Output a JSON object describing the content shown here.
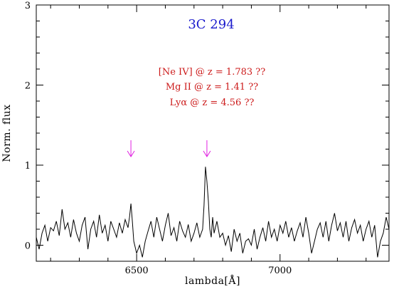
{
  "chart_data": {
    "type": "line",
    "title": "3C 294",
    "xlabel": "lambda[Å]",
    "ylabel": "Norm. flux",
    "xlim": [
      6150,
      7380
    ],
    "ylim": [
      -0.2,
      3.0
    ],
    "x_ticks": [
      {
        "value": 6500,
        "label": "6500"
      },
      {
        "value": 7000,
        "label": "7000"
      }
    ],
    "y_ticks": [
      {
        "value": 0,
        "label": "0"
      },
      {
        "value": 1,
        "label": "1"
      },
      {
        "value": 2,
        "label": "2"
      },
      {
        "value": 3,
        "label": "3"
      }
    ],
    "annotations": [
      "[Ne IV] @ z = 1.783 ??",
      "Mg II @ z = 1.41 ??",
      "Lyα @ z = 4.56 ??"
    ],
    "arrow_positions": [
      6480,
      6745
    ],
    "colors": {
      "title": "#1a1acd",
      "annotations": "#cc1a1a",
      "arrows": "#e020e0",
      "line": "#000000"
    },
    "series": [
      {
        "x": [
          6150,
          6160,
          6170,
          6180,
          6190,
          6200,
          6210,
          6220,
          6230,
          6240,
          6250,
          6260,
          6270,
          6280,
          6290,
          6300,
          6310,
          6320,
          6330,
          6340,
          6350,
          6360,
          6370,
          6380,
          6390,
          6400,
          6410,
          6420,
          6430,
          6440,
          6450,
          6460,
          6470,
          6475,
          6480,
          6485,
          6490,
          6500,
          6510,
          6520,
          6530,
          6540,
          6550,
          6560,
          6570,
          6580,
          6590,
          6600,
          6610,
          6620,
          6630,
          6640,
          6650,
          6660,
          6670,
          6680,
          6690,
          6700,
          6710,
          6720,
          6730,
          6735,
          6740,
          6745,
          6750,
          6755,
          6760,
          6765,
          6770,
          6780,
          6790,
          6800,
          6810,
          6820,
          6830,
          6840,
          6850,
          6860,
          6870,
          6880,
          6890,
          6900,
          6910,
          6920,
          6930,
          6940,
          6950,
          6960,
          6970,
          6980,
          6990,
          7000,
          7010,
          7020,
          7030,
          7040,
          7050,
          7060,
          7070,
          7080,
          7090,
          7100,
          7110,
          7120,
          7130,
          7140,
          7150,
          7160,
          7170,
          7180,
          7190,
          7200,
          7210,
          7220,
          7230,
          7240,
          7250,
          7260,
          7270,
          7280,
          7290,
          7300,
          7310,
          7320,
          7330,
          7340,
          7350,
          7360,
          7370,
          7380
        ],
        "y": [
          0.1,
          -0.05,
          0.15,
          0.25,
          0.05,
          0.22,
          0.18,
          0.3,
          0.12,
          0.45,
          0.2,
          0.28,
          0.1,
          0.32,
          0.15,
          0.05,
          0.25,
          0.35,
          -0.05,
          0.2,
          0.3,
          0.1,
          0.38,
          0.15,
          0.25,
          0.05,
          0.3,
          0.2,
          0.1,
          0.28,
          0.15,
          0.32,
          0.22,
          0.35,
          0.52,
          0.3,
          0.05,
          -0.1,
          0.0,
          -0.15,
          0.05,
          0.18,
          0.3,
          0.1,
          0.35,
          0.2,
          0.05,
          0.25,
          0.4,
          0.12,
          0.22,
          0.05,
          0.3,
          0.18,
          0.1,
          0.26,
          0.05,
          0.15,
          0.28,
          0.1,
          0.2,
          0.5,
          0.98,
          0.8,
          0.55,
          0.2,
          0.1,
          0.35,
          0.15,
          0.3,
          0.1,
          0.15,
          0.0,
          0.12,
          -0.08,
          0.2,
          0.05,
          0.15,
          -0.1,
          0.05,
          0.08,
          0.0,
          0.2,
          -0.05,
          0.1,
          0.22,
          0.05,
          0.3,
          0.1,
          0.2,
          0.05,
          0.25,
          0.15,
          0.3,
          0.1,
          0.22,
          0.05,
          0.18,
          0.28,
          0.1,
          0.35,
          0.15,
          -0.1,
          0.05,
          0.2,
          0.28,
          0.1,
          0.3,
          0.05,
          0.25,
          0.4,
          0.18,
          0.28,
          0.1,
          0.3,
          0.05,
          0.22,
          0.32,
          0.15,
          0.25,
          0.05,
          0.2,
          0.3,
          0.1,
          0.25,
          -0.15,
          0.05,
          0.15,
          0.35,
          0.2
        ]
      }
    ]
  }
}
